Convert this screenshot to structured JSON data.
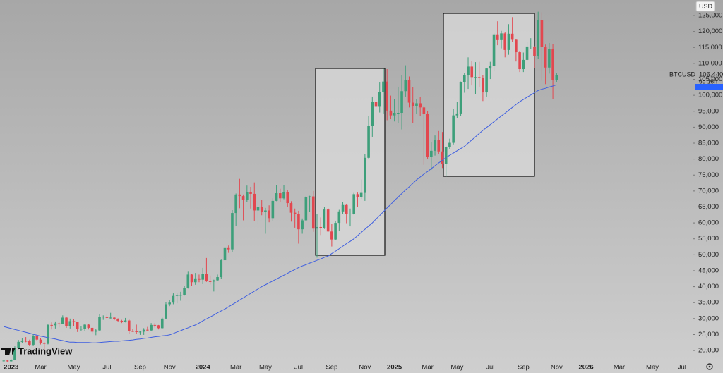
{
  "chart_data": {
    "type": "candlestick",
    "symbol": "BTCUSD",
    "currency": "USD",
    "brand": "TradingView",
    "last_price_label": "106,440",
    "countdown": "6d 15h",
    "up_color": "#3d9f7a",
    "down_color": "#e2474f",
    "ylim": [
      16700,
      129870
    ],
    "yticks": [
      {
        "value": 20000,
        "label": "20,000"
      },
      {
        "value": 25000,
        "label": "25,000"
      },
      {
        "value": 30000,
        "label": "30,000"
      },
      {
        "value": 35000,
        "label": "35,000"
      },
      {
        "value": 40000,
        "label": "40,000"
      },
      {
        "value": 45000,
        "label": "45,000"
      },
      {
        "value": 50000,
        "label": "50,000"
      },
      {
        "value": 55000,
        "label": "55,000"
      },
      {
        "value": 60000,
        "label": "60,000"
      },
      {
        "value": 65000,
        "label": "65,000"
      },
      {
        "value": 70000,
        "label": "70,000"
      },
      {
        "value": 75000,
        "label": "75,000"
      },
      {
        "value": 80000,
        "label": "80,000"
      },
      {
        "value": 85000,
        "label": "85,000"
      },
      {
        "value": 90000,
        "label": "90,000"
      },
      {
        "value": 95000,
        "label": "95,000"
      },
      {
        "value": 100000,
        "label": "100,000"
      },
      {
        "value": 105000,
        "label": "105,000"
      },
      {
        "value": 110000,
        "label": "110,000"
      },
      {
        "value": 115000,
        "label": "115,000"
      },
      {
        "value": 120000,
        "label": "120,000"
      },
      {
        "value": 125000,
        "label": "125,000"
      }
    ],
    "categories": [
      null,
      null,
      "2023",
      null,
      null,
      null,
      null,
      null,
      null,
      null,
      "Mar",
      null,
      null,
      null,
      null,
      null,
      null,
      null,
      null,
      "May",
      null,
      null,
      null,
      null,
      null,
      null,
      null,
      null,
      "Jul",
      null,
      null,
      null,
      null,
      null,
      null,
      null,
      null,
      "Sep",
      null,
      null,
      null,
      null,
      null,
      null,
      null,
      "Nov",
      null,
      null,
      null,
      null,
      null,
      null,
      null,
      null,
      "2024",
      null,
      null,
      null,
      null,
      null,
      null,
      null,
      null,
      "Mar",
      null,
      null,
      null,
      null,
      null,
      null,
      null,
      "May",
      null,
      null,
      null,
      null,
      null,
      null,
      null,
      null,
      "Jul",
      null,
      null,
      null,
      null,
      null,
      null,
      null,
      null,
      "Sep",
      null,
      null,
      null,
      null,
      null,
      null,
      null,
      null,
      "Nov",
      null,
      null,
      null,
      null,
      null,
      null,
      null,
      "2025",
      null,
      null,
      null,
      null,
      null,
      null,
      null,
      null,
      "Mar",
      null,
      null,
      null,
      null,
      null,
      null,
      null,
      "May",
      null,
      null,
      null,
      null,
      null,
      null,
      null,
      null,
      "Jul",
      null,
      null,
      null,
      null,
      null,
      null,
      null,
      null,
      "Sep",
      null,
      null,
      null,
      null,
      null,
      null,
      null,
      null,
      "Nov",
      null,
      null,
      null,
      null,
      null,
      null,
      null,
      "2026",
      null,
      null,
      null,
      null,
      null,
      null,
      null,
      null,
      "Mar",
      null,
      null,
      null,
      null,
      null,
      null,
      null,
      null,
      "May",
      null,
      null,
      null,
      null,
      null,
      null,
      null,
      "Jul",
      null,
      null
    ],
    "open": [
      16750,
      16840,
      16600,
      17100,
      20900,
      22700,
      23000,
      22900,
      21800,
      24600,
      23400,
      22400,
      22100,
      28000,
      27900,
      28500,
      28300,
      30300,
      27600,
      29200,
      28900,
      26800,
      26800,
      28100,
      27100,
      25900,
      26300,
      30500,
      30600,
      30200,
      30300,
      29900,
      29300,
      29000,
      29400,
      26100,
      26000,
      25800,
      25900,
      26500,
      26300,
      28000,
      27900,
      27000,
      30000,
      34500,
      35000,
      37100,
      37400,
      37400,
      39500,
      43800,
      41400,
      42600,
      42200,
      43900,
      41700,
      41600,
      42000,
      43000,
      48300,
      52100,
      51700,
      63100,
      68900,
      68400,
      67200,
      69700,
      69100,
      63900,
      64900,
      63400,
      63900,
      61500,
      66900,
      69300,
      67700,
      69600,
      66200,
      63200,
      62700,
      58000,
      60800,
      68200,
      68300,
      58200,
      58700,
      58400,
      64200,
      57300,
      54800,
      60000,
      63600,
      65600,
      62800,
      62900,
      69000,
      68000,
      69400,
      80400,
      90500,
      97900,
      96400,
      101100,
      104300,
      95200,
      93700,
      94500,
      94500,
      101300,
      104800,
      97700,
      96500,
      97500,
      96200,
      94200,
      80700,
      82600,
      86100,
      82400,
      78400,
      83700,
      85100,
      93700,
      94300,
      104200,
      106400,
      109000,
      105700,
      105700,
      105500,
      100900,
      108400,
      109200,
      119100,
      117300,
      119400,
      114200,
      119300,
      117400,
      113500,
      108200,
      111100,
      115300,
      115300,
      112200,
      123500,
      115100,
      108700,
      114500,
      104700,
      null,
      null,
      null,
      null,
      null,
      null,
      null,
      null,
      null,
      null,
      null,
      null,
      null,
      null,
      null,
      null,
      null,
      null,
      null,
      null,
      null,
      null,
      null,
      null,
      null,
      null,
      null,
      null,
      null,
      null,
      null,
      null,
      null,
      null,
      null,
      null
    ],
    "high": [
      16960,
      17100,
      17300,
      21300,
      23300,
      23900,
      24200,
      23400,
      25200,
      25000,
      23900,
      22600,
      28400,
      28800,
      29100,
      28800,
      31000,
      30400,
      30000,
      29800,
      29000,
      27600,
      28400,
      28400,
      27200,
      26800,
      31400,
      31000,
      31400,
      31800,
      30400,
      30100,
      29600,
      30200,
      29700,
      26800,
      28100,
      26100,
      27000,
      27400,
      28600,
      28600,
      28000,
      30300,
      35200,
      35800,
      37900,
      37900,
      38400,
      40200,
      44700,
      44000,
      44300,
      43800,
      45900,
      49000,
      43500,
      42200,
      43800,
      48500,
      52800,
      52900,
      64000,
      69200,
      73800,
      68900,
      71700,
      71300,
      72700,
      66800,
      67200,
      64700,
      65500,
      67700,
      71900,
      70700,
      71900,
      70200,
      66800,
      64500,
      63800,
      61400,
      68400,
      68500,
      70000,
      62700,
      61700,
      65100,
      64600,
      59800,
      60600,
      64100,
      66500,
      66000,
      64500,
      69400,
      69500,
      73600,
      81500,
      93400,
      99600,
      98900,
      104000,
      108300,
      108200,
      99900,
      98900,
      102700,
      106400,
      109400,
      105900,
      102500,
      98800,
      99500,
      96500,
      95000,
      85300,
      87400,
      88800,
      88500,
      84000,
      86400,
      95800,
      97900,
      104300,
      107100,
      111900,
      110700,
      110400,
      110500,
      106300,
      108500,
      110500,
      119500,
      123200,
      120200,
      119800,
      122300,
      124500,
      117600,
      113800,
      113400,
      116700,
      117900,
      115400,
      126200,
      126000,
      115900,
      116400,
      116100,
      107000,
      null,
      null,
      null,
      null,
      null,
      null,
      null,
      null,
      null,
      null,
      null,
      null,
      null,
      null,
      null,
      null,
      null,
      null,
      null,
      null,
      null,
      null,
      null,
      null,
      null,
      null,
      null,
      null,
      null,
      null,
      null,
      null,
      null,
      null,
      null,
      null
    ],
    "low": [
      16400,
      16500,
      16500,
      17000,
      20400,
      22300,
      22600,
      21400,
      21500,
      23100,
      21900,
      19600,
      21900,
      26600,
      26900,
      27200,
      28200,
      27100,
      26900,
      27700,
      25800,
      26100,
      26100,
      26600,
      25400,
      24800,
      26200,
      29600,
      29800,
      30000,
      29500,
      28900,
      28600,
      28800,
      25200,
      25800,
      25300,
      24900,
      24900,
      26000,
      26000,
      27200,
      26600,
      26900,
      29800,
      33900,
      34500,
      34800,
      35600,
      37200,
      39400,
      40300,
      40600,
      41400,
      40800,
      41500,
      40700,
      38500,
      41800,
      42500,
      47700,
      50600,
      50900,
      59100,
      64600,
      60800,
      66500,
      64500,
      60700,
      59600,
      62400,
      56600,
      60200,
      60700,
      66800,
      66600,
      67400,
      65000,
      60400,
      58500,
      53500,
      56600,
      60700,
      63500,
      57200,
      49100,
      56200,
      58100,
      57200,
      52600,
      54600,
      57500,
      62700,
      59900,
      58900,
      62600,
      65100,
      67500,
      66900,
      80200,
      87000,
      90800,
      94600,
      94300,
      92200,
      92500,
      91800,
      91300,
      89300,
      99600,
      96200,
      91200,
      94100,
      93400,
      78200,
      80000,
      76600,
      81100,
      81600,
      77200,
      74500,
      83200,
      84600,
      92800,
      93400,
      100800,
      102000,
      103100,
      100400,
      102700,
      98200,
      99600,
      105100,
      107500,
      115700,
      114700,
      111900,
      112700,
      116800,
      110600,
      107300,
      107300,
      110700,
      114400,
      108600,
      111500,
      104600,
      103500,
      106800,
      98900,
      104200,
      null,
      null,
      null,
      null,
      null,
      null,
      null,
      null,
      null,
      null,
      null,
      null,
      null,
      null,
      null,
      null,
      null,
      null,
      null,
      null,
      null,
      null,
      null,
      null,
      null,
      null,
      null,
      null,
      null,
      null,
      null,
      null,
      null,
      null,
      null,
      null
    ],
    "close": [
      16840,
      16600,
      17100,
      20900,
      22700,
      23000,
      22900,
      21800,
      24600,
      23400,
      22400,
      22100,
      28000,
      27900,
      28500,
      28300,
      30300,
      27600,
      29200,
      28900,
      26800,
      26800,
      28100,
      27100,
      25900,
      26300,
      30500,
      30600,
      30200,
      30300,
      29900,
      29300,
      29000,
      29400,
      26100,
      26000,
      25800,
      25900,
      26500,
      26300,
      28000,
      27900,
      27000,
      30000,
      34500,
      35000,
      37100,
      37400,
      37400,
      39500,
      43800,
      41400,
      42600,
      42200,
      43900,
      41700,
      41600,
      42000,
      43000,
      48300,
      52100,
      51700,
      63100,
      68900,
      68400,
      67200,
      69700,
      69100,
      63900,
      64900,
      63400,
      63900,
      61500,
      66900,
      69300,
      67700,
      69600,
      66200,
      63200,
      62700,
      58000,
      60800,
      68200,
      68300,
      58200,
      58700,
      58400,
      64200,
      57300,
      54800,
      60000,
      63600,
      65600,
      62800,
      62900,
      69000,
      68000,
      69400,
      80400,
      90500,
      97900,
      96400,
      101100,
      104300,
      95200,
      93700,
      94500,
      94500,
      101300,
      104800,
      97700,
      96500,
      97500,
      96200,
      94200,
      80700,
      82600,
      86100,
      82400,
      78400,
      83700,
      85100,
      93700,
      94300,
      104200,
      106400,
      109000,
      105700,
      105700,
      105500,
      100900,
      108400,
      109200,
      119100,
      117300,
      119400,
      114200,
      119300,
      117400,
      113500,
      108200,
      111100,
      115300,
      115300,
      112200,
      123500,
      115100,
      108700,
      114500,
      104700,
      106440,
      null,
      null,
      null,
      null,
      null,
      null,
      null,
      null,
      null,
      null,
      null,
      null,
      null,
      null,
      null,
      null,
      null,
      null,
      null,
      null,
      null,
      null,
      null,
      null,
      null,
      null,
      null,
      null,
      null,
      null,
      null,
      null,
      null,
      null,
      null,
      null
    ],
    "ma": {
      "color": "#3f5fe0",
      "values": [
        27500,
        27200,
        26900,
        26600,
        26300,
        26000,
        25700,
        25400,
        25100,
        24800,
        24500,
        24300,
        24000,
        23800,
        23600,
        23300,
        23100,
        22800,
        22600,
        22600,
        22500,
        22500,
        22500,
        22500,
        22400,
        22400,
        22500,
        22600,
        22700,
        22800,
        22900,
        22900,
        23000,
        23100,
        23200,
        23300,
        23500,
        23600,
        23800,
        23900,
        24100,
        24300,
        24400,
        24600,
        24700,
        24900,
        25300,
        25800,
        26200,
        26700,
        27100,
        27600,
        28000,
        28600,
        29300,
        29900,
        30500,
        31100,
        31800,
        32400,
        33000,
        33700,
        34400,
        35100,
        35800,
        36500,
        37200,
        37900,
        38600,
        39300,
        40000,
        40600,
        41200,
        41800,
        42400,
        43000,
        43600,
        44200,
        44800,
        45400,
        46000,
        46500,
        46900,
        47400,
        47800,
        48300,
        48700,
        49200,
        49600,
        50400,
        51100,
        51900,
        52700,
        53500,
        54200,
        55000,
        56000,
        57000,
        58000,
        59000,
        60000,
        61200,
        62300,
        63500,
        64700,
        65800,
        67000,
        68100,
        69200,
        70300,
        71300,
        72400,
        73500,
        74400,
        75300,
        76100,
        77000,
        77900,
        78800,
        79600,
        80500,
        81200,
        81900,
        82600,
        83300,
        84000,
        85000,
        86000,
        87000,
        88000,
        89000,
        89900,
        90800,
        91700,
        92600,
        93500,
        94400,
        95300,
        96200,
        97100,
        98000,
        98700,
        99400,
        100100,
        100800,
        101500,
        101900,
        102200,
        102600,
        102900,
        103300,
        null,
        null,
        null,
        null,
        null,
        null,
        null,
        null,
        null,
        null,
        null,
        null,
        null,
        null,
        null,
        null,
        null,
        null,
        null,
        null,
        null,
        null,
        null,
        null,
        null,
        null,
        null,
        null,
        null,
        null,
        null,
        null,
        null,
        null,
        null,
        null
      ]
    }
  }
}
